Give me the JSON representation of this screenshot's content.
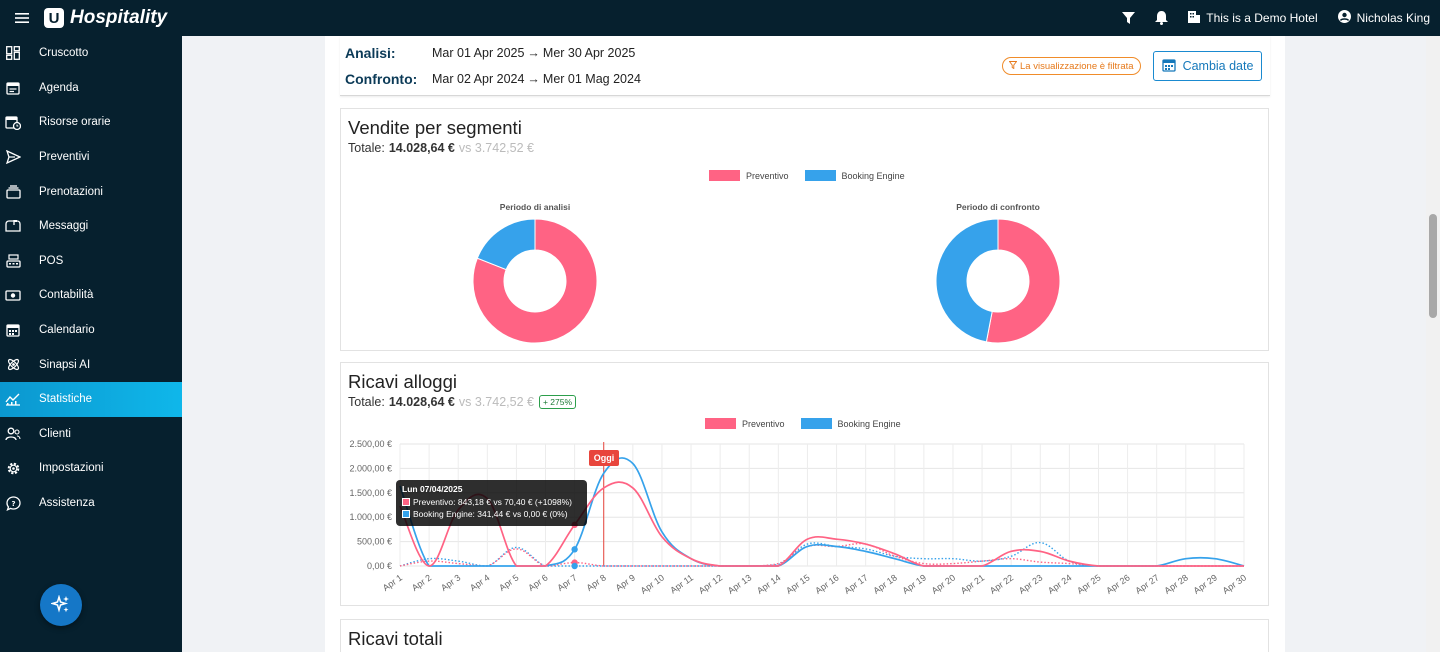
{
  "topbar": {
    "brand": "Hospitality",
    "brand_mark": "U",
    "hotel": "This is a Demo Hotel",
    "user": "Nicholas King",
    "icons": [
      "menu-icon",
      "filter-icon",
      "bell-icon",
      "building-icon",
      "account-icon"
    ]
  },
  "sidebar": {
    "items": [
      {
        "label": "Cruscotto",
        "icon": "dashboard-icon"
      },
      {
        "label": "Agenda",
        "icon": "agenda-icon"
      },
      {
        "label": "Risorse orarie",
        "icon": "calendar-clock-icon"
      },
      {
        "label": "Preventivi",
        "icon": "send-icon"
      },
      {
        "label": "Prenotazioni",
        "icon": "bookings-icon"
      },
      {
        "label": "Messaggi",
        "icon": "mailbox-icon"
      },
      {
        "label": "POS",
        "icon": "cash-register-icon"
      },
      {
        "label": "Contabilità",
        "icon": "cash-icon"
      },
      {
        "label": "Calendario",
        "icon": "calendar-icon"
      },
      {
        "label": "Sinapsi AI",
        "icon": "atom-icon"
      },
      {
        "label": "Statistiche",
        "icon": "chart-icon",
        "active": true
      },
      {
        "label": "Clienti",
        "icon": "users-icon"
      },
      {
        "label": "Impostazioni",
        "icon": "gear-icon"
      },
      {
        "label": "Assistenza",
        "icon": "help-chat-icon"
      }
    ],
    "fab_icon": "sparkles-icon"
  },
  "dates": {
    "analysis_label": "Analisi:",
    "analysis_from": "Mar 01 Apr 2025",
    "analysis_to": "Mer 30 Apr 2025",
    "compare_label": "Confronto:",
    "compare_from": "Mar 02 Apr 2024",
    "compare_to": "Mer 01 Mag 2024",
    "arrow": "→",
    "filter_badge": "La visualizzazione è filtrata",
    "change_button": "Cambia date"
  },
  "colors": {
    "preventivo": "#ff6384",
    "booking": "#36a2eb",
    "accent": "#0fb7ea",
    "today": "#e8453c"
  },
  "segments": {
    "title": "Vendite per segmenti",
    "total_label": "Totale:",
    "total_value": "14.028,64 €",
    "total_vs": "vs 3.742,52 €",
    "legend": [
      "Preventivo",
      "Booking Engine"
    ],
    "pie_analysis_title": "Periodo di analisi",
    "pie_compare_title": "Periodo di confronto"
  },
  "revenue": {
    "title": "Ricavi alloggi",
    "total_label": "Totale:",
    "total_value": "14.028,64 €",
    "total_vs": "vs 3.742,52 €",
    "delta": "+ 275%",
    "legend": [
      "Preventivo",
      "Booking Engine"
    ],
    "today_label": "Oggi",
    "tooltip": {
      "title": "Lun 07/04/2025",
      "row1": "Preventivo: 843,18 € vs 70,40 € (+1098%)",
      "row2": "Booking Engine: 341,44 € vs 0,00 € (0%)"
    }
  },
  "next_section": {
    "title": "Ricavi totali"
  },
  "chart_data": [
    {
      "type": "pie",
      "title": "Periodo di analisi",
      "categories": [
        "Preventivo",
        "Booking Engine"
      ],
      "values": [
        81,
        19
      ]
    },
    {
      "type": "pie",
      "title": "Periodo di confronto",
      "categories": [
        "Preventivo",
        "Booking Engine"
      ],
      "values": [
        53,
        47
      ]
    },
    {
      "type": "line",
      "ylim": [
        0,
        2500
      ],
      "yticks": [
        "0,00 €",
        "500,00 €",
        "1.000,00 €",
        "1.500,00 €",
        "2.000,00 €",
        "2.500,00 €"
      ],
      "categories": [
        "Apr 1",
        "Apr 2",
        "Apr 3",
        "Apr 4",
        "Apr 5",
        "Apr 6",
        "Apr 7",
        "Apr 8",
        "Apr 9",
        "Apr 10",
        "Apr 11",
        "Apr 12",
        "Apr 13",
        "Apr 14",
        "Apr 15",
        "Apr 16",
        "Apr 17",
        "Apr 18",
        "Apr 19",
        "Apr 20",
        "Apr 21",
        "Apr 22",
        "Apr 23",
        "Apr 24",
        "Apr 25",
        "Apr 26",
        "Apr 27",
        "Apr 28",
        "Apr 29",
        "Apr 30"
      ],
      "series": [
        {
          "name": "Preventivo",
          "color": "#ff6384",
          "style": "solid",
          "values": [
            1230,
            0,
            1150,
            1380,
            0,
            0,
            843,
            1600,
            1600,
            600,
            150,
            0,
            0,
            0,
            550,
            550,
            450,
            250,
            0,
            0,
            0,
            300,
            300,
            100,
            0,
            0,
            0,
            0,
            0,
            0
          ]
        },
        {
          "name": "Booking Engine",
          "color": "#36a2eb",
          "style": "solid",
          "values": [
            1640,
            0,
            0,
            0,
            0,
            0,
            341,
            1900,
            2100,
            700,
            150,
            0,
            0,
            0,
            400,
            400,
            300,
            150,
            0,
            0,
            0,
            0,
            0,
            0,
            0,
            0,
            0,
            150,
            150,
            0
          ]
        },
        {
          "name": "Preventivo",
          "color": "#ff6384",
          "style": "dotted",
          "values": [
            0,
            100,
            50,
            0,
            350,
            0,
            70,
            0,
            0,
            0,
            0,
            0,
            0,
            50,
            400,
            400,
            450,
            200,
            50,
            50,
            100,
            150,
            80,
            50,
            0,
            0,
            0,
            0,
            0,
            0
          ]
        },
        {
          "name": "Booking Engine",
          "color": "#36a2eb",
          "style": "dotted",
          "values": [
            0,
            150,
            100,
            0,
            380,
            0,
            0,
            0,
            0,
            0,
            0,
            0,
            0,
            30,
            450,
            400,
            350,
            200,
            150,
            150,
            100,
            200,
            480,
            100,
            0,
            0,
            0,
            0,
            0,
            0
          ]
        }
      ]
    }
  ]
}
